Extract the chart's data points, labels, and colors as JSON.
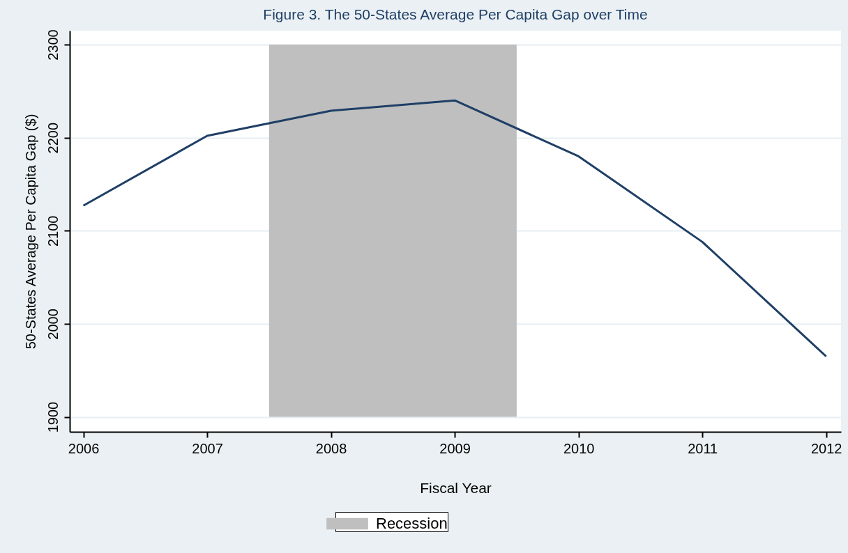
{
  "chart_data": {
    "type": "line",
    "title": "Figure 3. The 50-States Average Per Capita Gap over Time",
    "xlabel": "Fiscal Year",
    "ylabel": "50-States Average Per Capita Gap ($)",
    "x": [
      2006,
      2007,
      2008,
      2009,
      2010,
      2011,
      2012
    ],
    "series": [
      {
        "color": "#1f3f66",
        "values": [
          2127,
          2202,
          2229,
          2240,
          2180,
          2088,
          1965
        ]
      }
    ],
    "xlim": [
      2005.89,
      2012.12
    ],
    "xticks": [
      2006,
      2007,
      2008,
      2009,
      2010,
      2011,
      2012
    ],
    "ylim": [
      1884,
      2315
    ],
    "yticks": [
      1900,
      2000,
      2100,
      2200,
      2300
    ],
    "bands": [
      {
        "axis": "x",
        "from": 2007.5,
        "to": 2009.5,
        "label": "Recession",
        "color": "#bfbfbf"
      }
    ],
    "grid": "y",
    "legend": "bottom",
    "marker": "none",
    "line_style": "solid"
  }
}
